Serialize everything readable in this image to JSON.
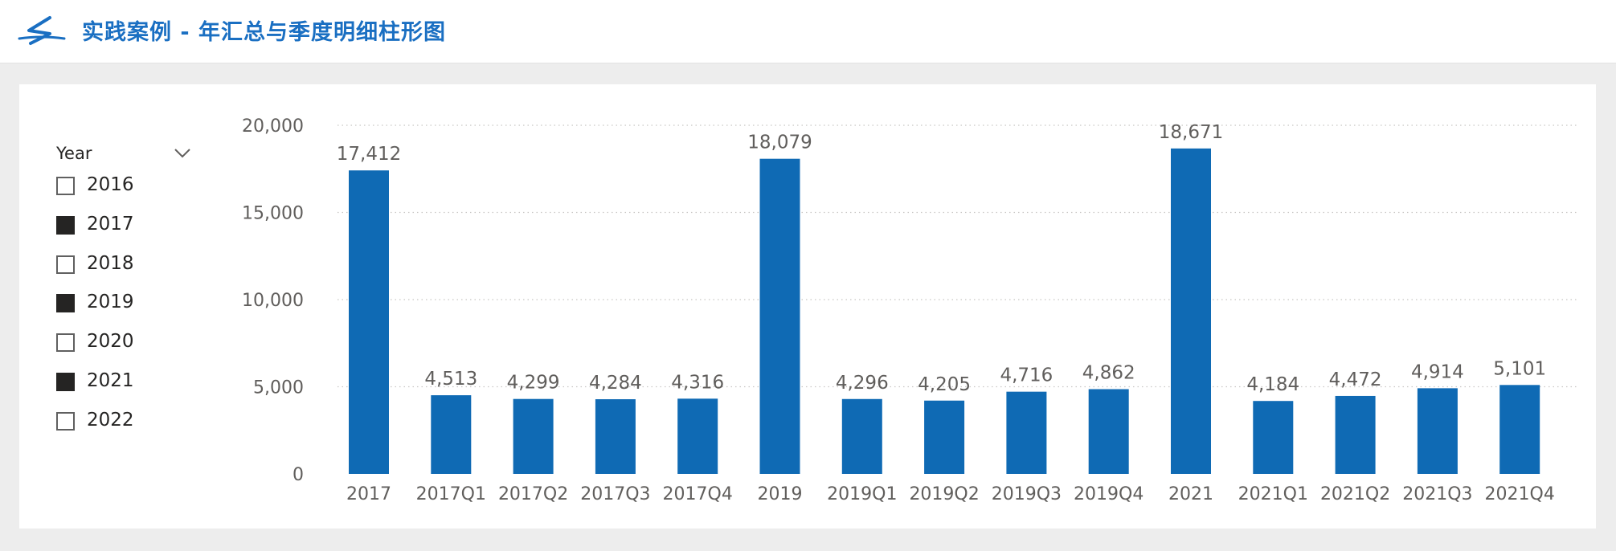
{
  "header": {
    "title": "实践案例 - 年汇总与季度明细柱形图",
    "logo_icon": "swoosh-logo-icon"
  },
  "slicer": {
    "title": "Year",
    "items": [
      {
        "label": "2016",
        "checked": false
      },
      {
        "label": "2017",
        "checked": true
      },
      {
        "label": "2018",
        "checked": false
      },
      {
        "label": "2019",
        "checked": true
      },
      {
        "label": "2020",
        "checked": false
      },
      {
        "label": "2021",
        "checked": true
      },
      {
        "label": "2022",
        "checked": false
      }
    ]
  },
  "colors": {
    "bar": "#0f6ab4",
    "title": "#1a6fc2",
    "checked": "#252423"
  },
  "chart_data": {
    "type": "bar",
    "title": "",
    "xlabel": "",
    "ylabel": "",
    "ylim": [
      0,
      20000
    ],
    "yticks": [
      0,
      5000,
      10000,
      15000,
      20000
    ],
    "ytick_labels": [
      "0",
      "5,000",
      "10,000",
      "15,000",
      "20,000"
    ],
    "grid": true,
    "categories": [
      "2017",
      "2017Q1",
      "2017Q2",
      "2017Q3",
      "2017Q4",
      "2019",
      "2019Q1",
      "2019Q2",
      "2019Q3",
      "2019Q4",
      "2021",
      "2021Q1",
      "2021Q2",
      "2021Q3",
      "2021Q4"
    ],
    "values": [
      17412,
      4513,
      4299,
      4284,
      4316,
      18079,
      4296,
      4205,
      4716,
      4862,
      18671,
      4184,
      4472,
      4914,
      5101
    ],
    "data_labels": [
      "17,412",
      "4,513",
      "4,299",
      "4,284",
      "4,316",
      "18,079",
      "4,296",
      "4,205",
      "4,716",
      "4,862",
      "18,671",
      "4,184",
      "4,472",
      "4,914",
      "5,101"
    ]
  }
}
